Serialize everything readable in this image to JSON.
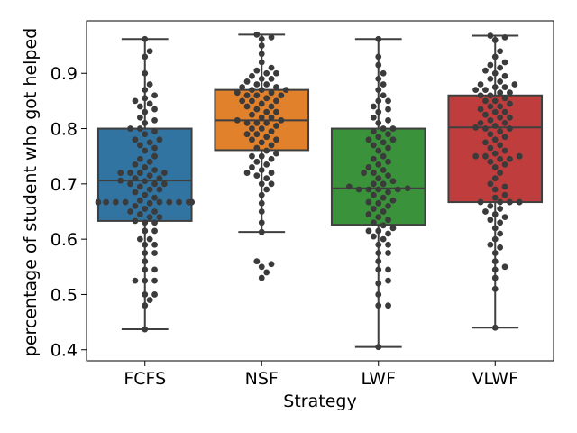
{
  "chart_data": {
    "type": "box",
    "xlabel": "Strategy",
    "ylabel": "percentage of student who got helped",
    "ylim": [
      0.38,
      0.995
    ],
    "yticks": [
      0.4,
      0.5,
      0.6,
      0.7,
      0.8,
      0.9
    ],
    "ytick_labels": [
      "0.4",
      "0.5",
      "0.6",
      "0.7",
      "0.8",
      "0.9"
    ],
    "categories": [
      "FCFS",
      "NSF",
      "LWF",
      "VLWF"
    ],
    "colors": [
      "#3274a1",
      "#e1812c",
      "#3a923a",
      "#c03d3e"
    ],
    "point_color": "#3b3b3b",
    "series": [
      {
        "name": "FCFS",
        "stats": {
          "whisker_low": 0.437,
          "q1": 0.633,
          "median": 0.706,
          "q3": 0.8,
          "whisker_high": 0.962
        },
        "points": [
          0.437,
          0.48,
          0.49,
          0.5,
          0.5,
          0.525,
          0.525,
          0.525,
          0.545,
          0.545,
          0.56,
          0.575,
          0.575,
          0.59,
          0.59,
          0.6,
          0.6,
          0.615,
          0.615,
          0.63,
          0.63,
          0.633,
          0.64,
          0.64,
          0.645,
          0.65,
          0.65,
          0.655,
          0.66,
          0.665,
          0.667,
          0.667,
          0.667,
          0.667,
          0.667,
          0.667,
          0.667,
          0.667,
          0.667,
          0.667,
          0.667,
          0.67,
          0.675,
          0.68,
          0.685,
          0.69,
          0.69,
          0.695,
          0.7,
          0.7,
          0.7,
          0.705,
          0.706,
          0.71,
          0.71,
          0.715,
          0.72,
          0.72,
          0.72,
          0.72,
          0.725,
          0.73,
          0.735,
          0.74,
          0.745,
          0.75,
          0.76,
          0.765,
          0.77,
          0.775,
          0.78,
          0.78,
          0.79,
          0.795,
          0.8,
          0.8,
          0.81,
          0.815,
          0.82,
          0.83,
          0.835,
          0.84,
          0.845,
          0.85,
          0.855,
          0.86,
          0.87,
          0.88,
          0.9,
          0.93,
          0.94,
          0.962
        ]
      },
      {
        "name": "NSF",
        "stats": {
          "whisker_low": 0.613,
          "q1": 0.761,
          "median": 0.815,
          "q3": 0.87,
          "whisker_high": 0.97
        },
        "points": [
          0.53,
          0.54,
          0.55,
          0.555,
          0.56,
          0.613,
          0.63,
          0.65,
          0.665,
          0.68,
          0.69,
          0.7,
          0.7,
          0.71,
          0.715,
          0.72,
          0.72,
          0.725,
          0.73,
          0.735,
          0.74,
          0.745,
          0.75,
          0.75,
          0.755,
          0.76,
          0.765,
          0.77,
          0.775,
          0.78,
          0.78,
          0.785,
          0.79,
          0.79,
          0.795,
          0.8,
          0.8,
          0.805,
          0.81,
          0.81,
          0.81,
          0.815,
          0.815,
          0.82,
          0.82,
          0.825,
          0.83,
          0.83,
          0.835,
          0.84,
          0.84,
          0.845,
          0.85,
          0.85,
          0.85,
          0.855,
          0.86,
          0.86,
          0.86,
          0.865,
          0.865,
          0.87,
          0.87,
          0.87,
          0.875,
          0.875,
          0.88,
          0.88,
          0.885,
          0.89,
          0.89,
          0.895,
          0.9,
          0.9,
          0.905,
          0.91,
          0.92,
          0.935,
          0.95,
          0.962,
          0.965,
          0.97
        ]
      },
      {
        "name": "LWF",
        "stats": {
          "whisker_low": 0.405,
          "q1": 0.626,
          "median": 0.692,
          "q3": 0.8,
          "whisker_high": 0.962
        },
        "points": [
          0.405,
          0.48,
          0.48,
          0.5,
          0.52,
          0.525,
          0.545,
          0.545,
          0.56,
          0.575,
          0.575,
          0.59,
          0.59,
          0.6,
          0.605,
          0.61,
          0.615,
          0.615,
          0.62,
          0.625,
          0.63,
          0.635,
          0.64,
          0.645,
          0.65,
          0.655,
          0.66,
          0.665,
          0.667,
          0.67,
          0.675,
          0.68,
          0.685,
          0.69,
          0.69,
          0.69,
          0.69,
          0.692,
          0.695,
          0.7,
          0.7,
          0.705,
          0.71,
          0.715,
          0.72,
          0.72,
          0.725,
          0.73,
          0.735,
          0.74,
          0.745,
          0.75,
          0.76,
          0.765,
          0.77,
          0.775,
          0.78,
          0.78,
          0.785,
          0.79,
          0.795,
          0.8,
          0.8,
          0.81,
          0.815,
          0.82,
          0.83,
          0.835,
          0.84,
          0.85,
          0.85,
          0.86,
          0.87,
          0.88,
          0.89,
          0.9,
          0.915,
          0.93,
          0.962
        ]
      },
      {
        "name": "VLWF",
        "stats": {
          "whisker_low": 0.44,
          "q1": 0.667,
          "median": 0.802,
          "q3": 0.86,
          "whisker_high": 0.968
        },
        "points": [
          0.44,
          0.51,
          0.53,
          0.545,
          0.55,
          0.56,
          0.575,
          0.585,
          0.59,
          0.6,
          0.61,
          0.62,
          0.63,
          0.635,
          0.64,
          0.645,
          0.65,
          0.655,
          0.66,
          0.667,
          0.667,
          0.667,
          0.667,
          0.675,
          0.68,
          0.69,
          0.695,
          0.7,
          0.71,
          0.72,
          0.73,
          0.735,
          0.74,
          0.745,
          0.745,
          0.75,
          0.75,
          0.75,
          0.755,
          0.76,
          0.765,
          0.77,
          0.775,
          0.78,
          0.785,
          0.79,
          0.795,
          0.8,
          0.8,
          0.802,
          0.805,
          0.81,
          0.81,
          0.815,
          0.82,
          0.82,
          0.825,
          0.83,
          0.83,
          0.835,
          0.84,
          0.84,
          0.845,
          0.85,
          0.85,
          0.855,
          0.86,
          0.86,
          0.865,
          0.865,
          0.87,
          0.87,
          0.875,
          0.875,
          0.88,
          0.88,
          0.885,
          0.89,
          0.895,
          0.9,
          0.905,
          0.91,
          0.915,
          0.92,
          0.93,
          0.94,
          0.96,
          0.965,
          0.968
        ]
      }
    ]
  }
}
